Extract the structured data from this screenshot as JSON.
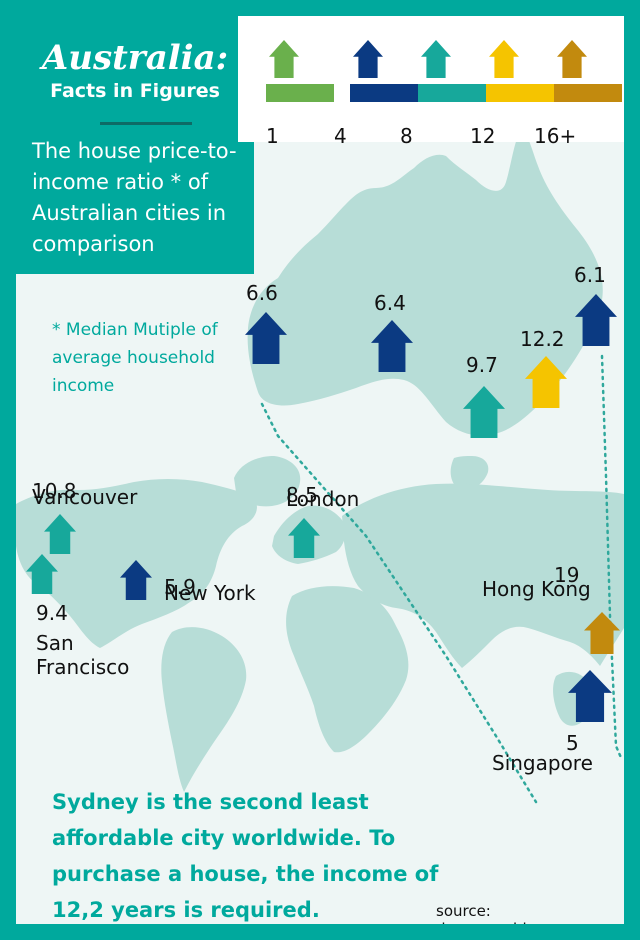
{
  "header": {
    "title": "Australia:",
    "subtitle": "Facts in Figures",
    "description": "The house price-to- income ratio * of Australian cities in comparison"
  },
  "legend": {
    "labels": [
      "1",
      "4",
      "8",
      "12",
      "16+"
    ],
    "colors": [
      "#6ab04c",
      "#0b3a82",
      "#17a89b",
      "#f5c400",
      "#c28a0e"
    ]
  },
  "footnote": "* Median Mutiple of average household income",
  "headline": "Sydney is the second least affordable city worldwide. To purchase a house, the income of 12,2 years is required.",
  "source": "source: demographia.com",
  "colors": {
    "frame": "#00a99d",
    "map": "#b7ddd7",
    "background": "#eef6f5",
    "accent_text": "#00a99d"
  },
  "chart_data": {
    "type": "map",
    "title": "The house price-to- income ratio * of Australian cities in comparison",
    "legend_breaks": [
      1,
      4,
      8,
      12,
      16
    ],
    "australian_cities": [
      {
        "value": 6.6,
        "color": "#0b3a82"
      },
      {
        "value": 6.4,
        "color": "#0b3a82"
      },
      {
        "value": 9.7,
        "color": "#17a89b"
      },
      {
        "value": 12.2,
        "color": "#f5c400"
      },
      {
        "value": 6.1,
        "color": "#0b3a82"
      }
    ],
    "world_cities": [
      {
        "name": "Vancouver",
        "value": 10.8,
        "color": "#17a89b"
      },
      {
        "name": "San Francisco",
        "value": 9.4,
        "color": "#17a89b"
      },
      {
        "name": "New York",
        "value": 5.9,
        "color": "#0b3a82"
      },
      {
        "name": "London",
        "value": 8.5,
        "color": "#17a89b"
      },
      {
        "name": "Hong Kong",
        "value": 19.0,
        "color": "#c28a0e"
      },
      {
        "name": "Singapore",
        "value": 5.0,
        "color": "#0b3a82"
      }
    ]
  }
}
